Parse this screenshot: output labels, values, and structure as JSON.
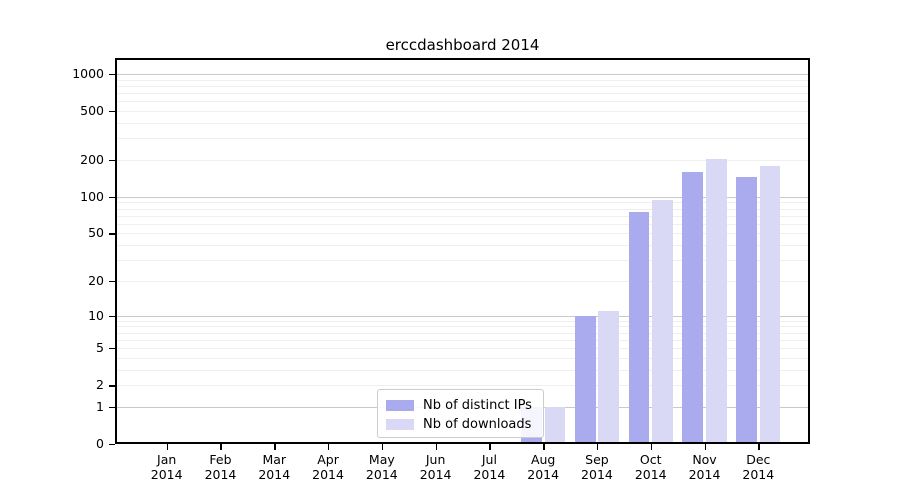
{
  "chart_data": {
    "type": "bar",
    "title": "erccdashboard 2014",
    "categories": [
      "Jan",
      "Feb",
      "Mar",
      "Apr",
      "May",
      "Jun",
      "Jul",
      "Aug",
      "Sep",
      "Oct",
      "Nov",
      "Dec"
    ],
    "year_label": "2014",
    "series": [
      {
        "name": "Nb of distinct IPs",
        "color": "#aaaaee",
        "values": [
          0,
          0,
          0,
          0,
          0,
          0,
          0,
          1,
          10,
          75,
          161,
          146
        ]
      },
      {
        "name": "Nb of downloads",
        "color": "#d9d9f6",
        "values": [
          0,
          0,
          0,
          0,
          0,
          0,
          0,
          1,
          11,
          94,
          205,
          180
        ]
      }
    ],
    "yscale": "log1p",
    "yticks": [
      0,
      1,
      2,
      5,
      10,
      20,
      50,
      100,
      200,
      500,
      1000
    ],
    "ytick_labels": [
      "0",
      "1",
      "2",
      "5",
      "10",
      "20",
      "50",
      "100",
      "200",
      "500",
      "1000"
    ],
    "major_gridlines": [
      1,
      10,
      100,
      1000
    ],
    "ylim": [
      0,
      1350
    ],
    "xlabel": "",
    "ylabel": "",
    "grid": true,
    "legend_position": "lower center",
    "colors": {
      "background": "#ffffff",
      "spine": "#000000",
      "major_grid": "#c9c9c9",
      "minor_grid": "#efefef",
      "legend_border": "#cccccc",
      "tick_text": "#000000"
    }
  }
}
